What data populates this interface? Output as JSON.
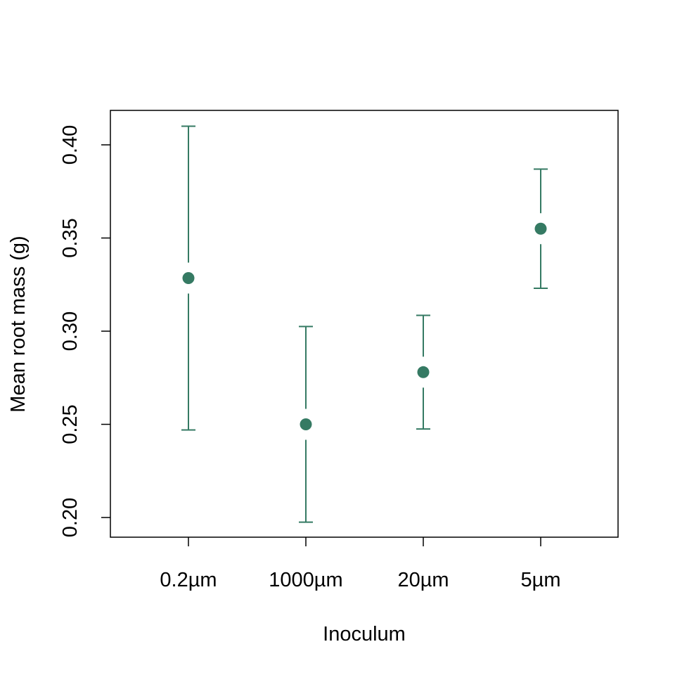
{
  "chart_data": {
    "type": "scatter",
    "title": "",
    "xlabel": "Inoculum",
    "ylabel": "Mean root mass (g)",
    "categories": [
      "0.2µm",
      "1000µm",
      "20µm",
      "5µm"
    ],
    "series": [
      {
        "values": [
          0.3285,
          0.25,
          0.278,
          0.355
        ],
        "lower": [
          0.247,
          0.1975,
          0.2475,
          0.323
        ],
        "upper": [
          0.41,
          0.3025,
          0.3085,
          0.387
        ]
      }
    ],
    "yticks": [
      "0.20",
      "0.25",
      "0.30",
      "0.35",
      "0.40"
    ],
    "ylim": [
      0.19,
      0.42
    ],
    "grid": false,
    "colors": {
      "series": "#357a63"
    }
  }
}
